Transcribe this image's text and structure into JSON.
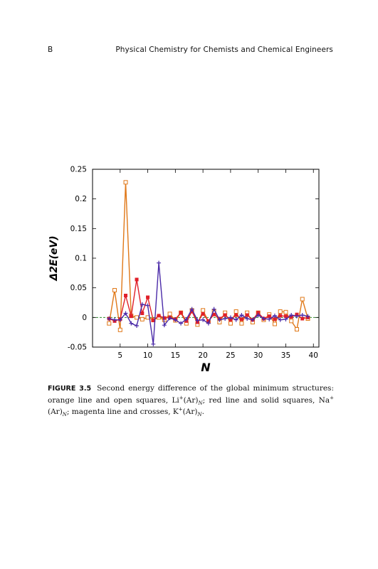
{
  "header": {
    "page_label": "B",
    "book_title": "Physical Chemistry for Chemists and Chemical Engineers"
  },
  "figure": {
    "number": "FIGURE 3.5",
    "caption_text": "Second energy difference of the global minimum structures: orange line and open squares, ",
    "species": [
      {
        "base": "Li",
        "charge": "+",
        "cluster": "(Ar)",
        "sub": "N",
        "after": "; red line and solid squares, "
      },
      {
        "base": "Na",
        "charge": "+",
        "cluster": "(Ar)",
        "sub": "N",
        "after": "; magenta line and crosses, "
      },
      {
        "base": "K",
        "charge": "+",
        "cluster": "(Ar)",
        "sub": "N",
        "after": "."
      }
    ]
  },
  "chart_data": {
    "type": "line",
    "xlabel": "N",
    "ylabel": "Δ2E(eV)",
    "xlim": [
      0,
      41
    ],
    "ylim": [
      -0.05,
      0.25
    ],
    "xticks": [
      5,
      10,
      15,
      20,
      25,
      30,
      35,
      40
    ],
    "yticks": [
      -0.05,
      0,
      0.05,
      0.1,
      0.15,
      0.2,
      0.25
    ],
    "ytick_labels": [
      "-0.05",
      "0",
      "0.05",
      "0.1",
      "0.15",
      "0.2",
      "0.25"
    ],
    "zero_line": true,
    "colors": {
      "orange": "#e07818",
      "red": "#e0202a",
      "magenta": "#4a2aa8",
      "zero": "#2e8b2e"
    },
    "series": [
      {
        "color": "orange",
        "marker": "open-square",
        "x": [
          3,
          4,
          5,
          6,
          7,
          8,
          9,
          10,
          11,
          12,
          13,
          14,
          15,
          16,
          17,
          18,
          19,
          20,
          21,
          22,
          23,
          24,
          25,
          26,
          27,
          28,
          29,
          30,
          31,
          32,
          33,
          34,
          35,
          36,
          37,
          38,
          39
        ],
        "y": [
          -0.01,
          0.046,
          -0.021,
          0.228,
          0.003,
          0.0,
          -0.003,
          0.0,
          -0.004,
          0.0,
          -0.004,
          0.006,
          -0.005,
          0.008,
          -0.01,
          0.012,
          -0.012,
          0.012,
          -0.007,
          0.01,
          -0.008,
          0.008,
          -0.01,
          0.01,
          -0.01,
          0.008,
          -0.008,
          0.008,
          -0.004,
          0.005,
          -0.011,
          0.01,
          0.009,
          -0.006,
          -0.02,
          0.031,
          -0.002
        ]
      },
      {
        "color": "red",
        "marker": "solid-square",
        "x": [
          3,
          4,
          5,
          6,
          7,
          8,
          9,
          10,
          11,
          12,
          13,
          14,
          15,
          16,
          17,
          18,
          19,
          20,
          21,
          22,
          23,
          24,
          25,
          26,
          27,
          28,
          29,
          30,
          31,
          32,
          33,
          34,
          35,
          36,
          37,
          38,
          39
        ],
        "y": [
          -0.002,
          -0.006,
          -0.003,
          0.037,
          0.002,
          0.064,
          0.007,
          0.034,
          -0.005,
          0.003,
          -0.001,
          0.0,
          -0.003,
          0.008,
          -0.006,
          0.01,
          -0.008,
          0.006,
          -0.006,
          0.005,
          -0.002,
          0.004,
          -0.004,
          0.004,
          -0.003,
          0.004,
          -0.004,
          0.008,
          -0.002,
          0.002,
          -0.003,
          0.003,
          0.002,
          0.001,
          0.005,
          -0.002,
          0.0
        ]
      },
      {
        "color": "magenta",
        "marker": "cross",
        "x": [
          3,
          4,
          5,
          6,
          7,
          8,
          9,
          10,
          11,
          12,
          13,
          14,
          15,
          16,
          17,
          18,
          19,
          20,
          21,
          22,
          23,
          24,
          25,
          26,
          27,
          28,
          29,
          30,
          31,
          32,
          33,
          34,
          35,
          36,
          37,
          38,
          39
        ],
        "y": [
          -0.002,
          -0.004,
          -0.004,
          0.007,
          -0.01,
          -0.014,
          0.022,
          0.02,
          -0.045,
          0.092,
          -0.013,
          -0.001,
          -0.004,
          -0.01,
          -0.003,
          0.014,
          -0.005,
          -0.004,
          -0.01,
          0.014,
          -0.004,
          -0.002,
          0.0,
          -0.004,
          0.004,
          -0.002,
          -0.004,
          0.004,
          -0.002,
          -0.003,
          0.003,
          -0.004,
          -0.003,
          0.004,
          0.002,
          0.004,
          0.002
        ]
      }
    ]
  }
}
